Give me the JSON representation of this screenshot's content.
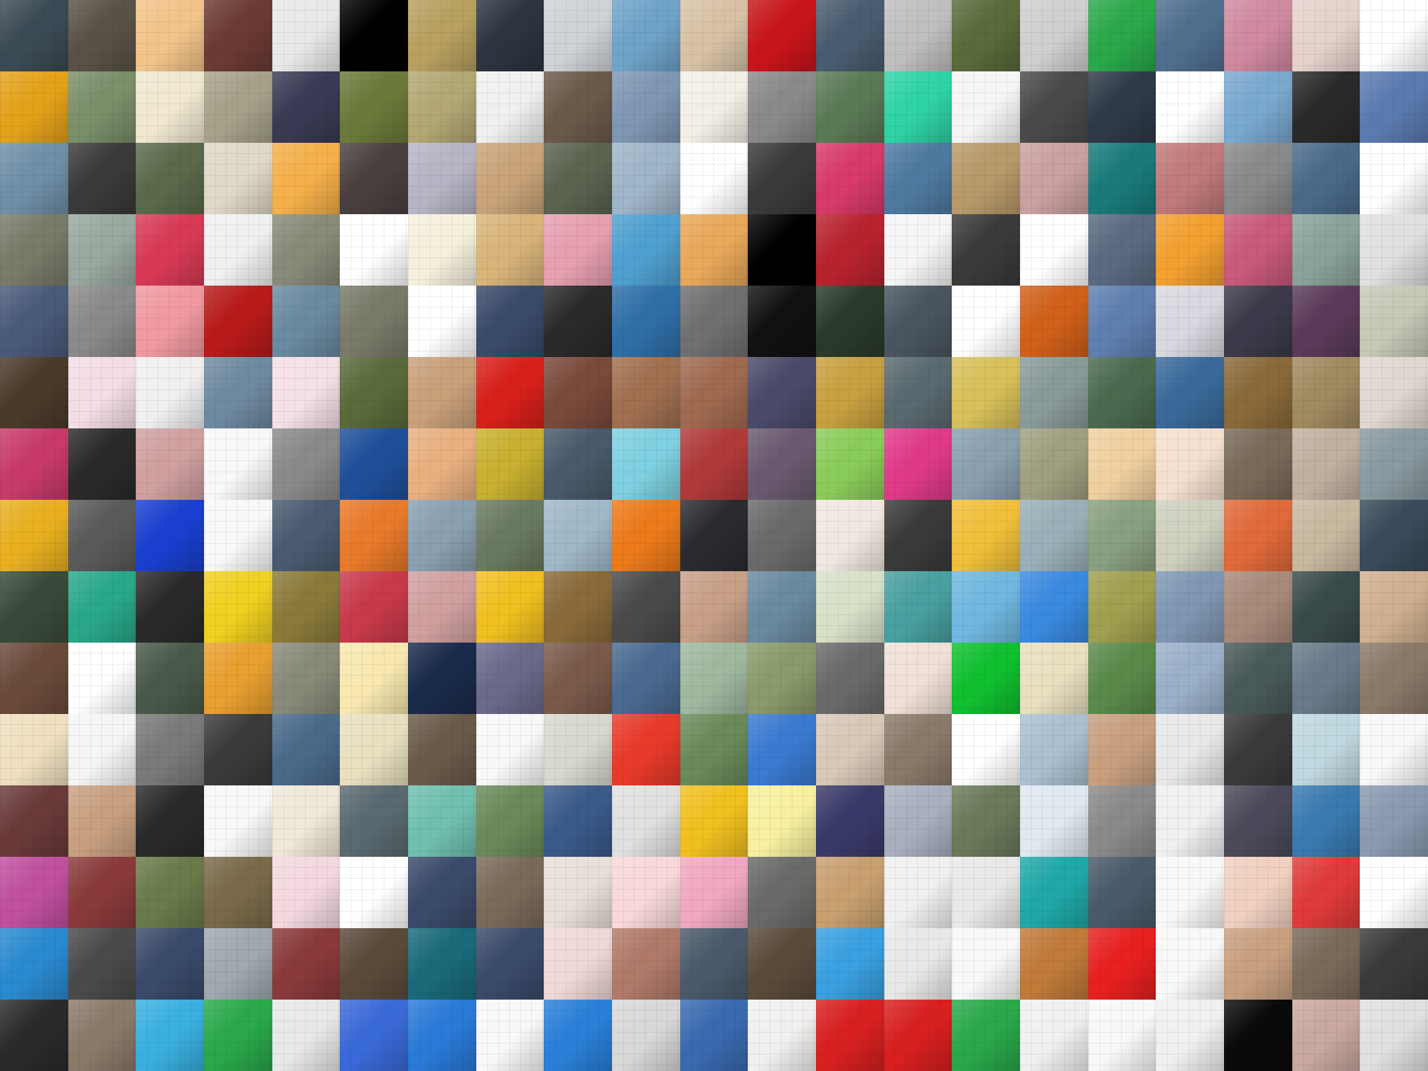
{
  "mosaic": {
    "columns": 21,
    "rows": 15,
    "description_colors": [
      [
        "#3b4a55",
        "#5a5246",
        "#f2c48a",
        "#6b3a33",
        "#e8e8e8",
        "#000000",
        "#b8a060",
        "#2d3440",
        "#cfd3d6",
        "#6fa3c8",
        "#d8c2a6",
        "#c8151a",
        "#4a5c70",
        "#bfbfbf",
        "#5a6a3a",
        "#cfcfcf",
        "#2aa84a",
        "#4f6f8f",
        "#d08aa0",
        "#e6d2cc",
        "#ffffff"
      ],
      [
        "#e3a21a",
        "#7a8f6a",
        "#f0e8d0",
        "#a6a28a",
        "#3a3a55",
        "#6b7a3a",
        "#b3a774",
        "#f0f0f0",
        "#6b5a4a",
        "#7f97b3",
        "#f4efe6",
        "#8a8a8a",
        "#5a7a55",
        "#2fd3a6",
        "#f5f5f5",
        "#4a4a4a",
        "#2e3a48",
        "#ffffff",
        "#7aa8cf",
        "#2a2a2a",
        "#5b7bb0"
      ],
      [
        "#6f8fa8",
        "#3a3a3a",
        "#5a6a4a",
        "#e0d8c8",
        "#f4b04a",
        "#4a4040",
        "#b5b5c5",
        "#c9a47a",
        "#5a6450",
        "#9fb5c8",
        "#ffffff",
        "#3a3a3a",
        "#d83a6a",
        "#4f7aa0",
        "#b89a6a",
        "#caa0a0",
        "#1a7a7a",
        "#c07a7a",
        "#8a8a8a",
        "#4a6a8a",
        "#ffffff"
      ],
      [
        "#7a7a6a",
        "#9aa8a0",
        "#d83a55",
        "#f0f0f0",
        "#8a8a7a",
        "#ffffff",
        "#f5f0dc",
        "#d9b47a",
        "#e6a0b0",
        "#4fa0d0",
        "#e9a85a",
        "#000000",
        "#b8232e",
        "#f5f5f5",
        "#3a3a3a",
        "#ffffff",
        "#5a6a80",
        "#f2a030",
        "#c85a7a",
        "#8aa39a",
        "#e0e0e0"
      ],
      [
        "#4a5a7a",
        "#8a8a8a",
        "#f09aa0",
        "#b81a1a",
        "#6a8aa0",
        "#7a7a6a",
        "#ffffff",
        "#3a4a6a",
        "#2a2a2a",
        "#2f6fa8",
        "#707070",
        "#111111",
        "#2a3a2a",
        "#4a5560",
        "#ffffff",
        "#d0601a",
        "#5f7fb0",
        "#d8d8e0",
        "#3a3a4a",
        "#5a3a5a",
        "#c8c8b8"
      ],
      [
        "#4a3a2a",
        "#f4dde4",
        "#f0f0f0",
        "#6f8aa0",
        "#f5e0e6",
        "#5a6a3a",
        "#c8a07a",
        "#d8201a",
        "#7a4a3a",
        "#a07050",
        "#a06a50",
        "#4a4a6a",
        "#c8a040",
        "#5a6a70",
        "#d8c05a",
        "#8a9a9a",
        "#4a6a50",
        "#3a6a9a",
        "#8a6a3a",
        "#a08a60",
        "#e0d8d0"
      ],
      [
        "#c83a6a",
        "#2a2a2a",
        "#d0a0a0",
        "#f8f8f8",
        "#8a8a8a",
        "#1f4f9a",
        "#e8b080",
        "#c8b030",
        "#4a5a6a",
        "#7fd0e0",
        "#b03a3a",
        "#6a5a70",
        "#8acc5a",
        "#e03a8a",
        "#8aa0b0",
        "#a0a080",
        "#f0d0a0",
        "#f5e0d0",
        "#7a6a5a",
        "#c0b0a0",
        "#8a9aa0"
      ],
      [
        "#e8b020",
        "#5a5a5a",
        "#1a3fd0",
        "#f8f8f8",
        "#4a5a70",
        "#e87a2a",
        "#8aa0b0",
        "#6a7a60",
        "#a0b8c8",
        "#ec7a1a",
        "#2a2a30",
        "#6a6a6a",
        "#f0e8e0",
        "#3a3a3a",
        "#f0c03a",
        "#9ab0b8",
        "#8aa080",
        "#d0d0c0",
        "#e06a3a",
        "#c8b8a0",
        "#3a4a5a"
      ],
      [
        "#3a4a3a",
        "#2aa88a",
        "#2a2a2a",
        "#f0d020",
        "#8a7a3a",
        "#c83a4a",
        "#d0a0a0",
        "#f0c020",
        "#8a6a3a",
        "#4a4a4a",
        "#c8a088",
        "#6a8aa0",
        "#d8e0c8",
        "#4aa0a0",
        "#70b8e0",
        "#3a8ae0",
        "#a0a050",
        "#7f97b3",
        "#a88a7a",
        "#3a4a4a",
        "#d0b090"
      ],
      [
        "#6a4a3a",
        "#ffffff",
        "#4a5a4a",
        "#e8a030",
        "#8a8a7a",
        "#f8e8b0",
        "#1a2a4a",
        "#6a6a8a",
        "#7a5a4a",
        "#4a6a90",
        "#a0b8a0",
        "#8a9a6a",
        "#6a6a6a",
        "#f0e0d8",
        "#10c030",
        "#e8e0c0",
        "#5a8a4a",
        "#9ab0c8",
        "#4a5a5a",
        "#6a7a8a",
        "#8a7a6a"
      ],
      [
        "#f0e0c0",
        "#f5f5f5",
        "#7a7a7a",
        "#3a3a3a",
        "#4a6a8a",
        "#e8e0c0",
        "#6a5a4a",
        "#f8f8f8",
        "#d8d8d0",
        "#e83a2a",
        "#6a8a5a",
        "#3a7ad0",
        "#d8c8b8",
        "#8a7a6a",
        "#ffffff",
        "#aac0d0",
        "#c8a080",
        "#e8e8e8",
        "#3a3a3a",
        "#c0d8e0",
        "#f8f8f8"
      ],
      [
        "#6a3a3a",
        "#c8a080",
        "#2a2a2a",
        "#f8f8f8",
        "#f0e8d8",
        "#5a6a70",
        "#70c0b0",
        "#6a8a5a",
        "#3a5a8a",
        "#e0e0e0",
        "#f0c020",
        "#f8f0a0",
        "#3a3a6a",
        "#a8b0c0",
        "#6a7a5a",
        "#e0e8f0",
        "#8a8a8a",
        "#f0f0f0",
        "#4a4a5a",
        "#3a7ab0",
        "#8a9ab0"
      ],
      [
        "#c050a0",
        "#8a3a3a",
        "#6a7a4a",
        "#7a6a4a",
        "#f4d8e0",
        "#ffffff",
        "#3a4a6a",
        "#7a6a5a",
        "#e8e0d8",
        "#f8d8d8",
        "#f0a8c0",
        "#6a6a6a",
        "#c8a070",
        "#f0f0f0",
        "#e8e8e8",
        "#20a8a8",
        "#4a5a6a",
        "#f8f8f8",
        "#f0d0c0",
        "#e03a3a",
        "#ffffff"
      ],
      [
        "#2a8ad0",
        "#4a4a4a",
        "#3a4a6a",
        "#a0a8b0",
        "#8a3a3a",
        "#5a4a3a",
        "#1a6a7a",
        "#3a4a6a",
        "#f0d8d8",
        "#b07a6a",
        "#4a5a6a",
        "#5a4a3a",
        "#3aa0e0",
        "#e8e8e8",
        "#f8f8f8",
        "#c07a3a",
        "#e82020",
        "#f8f8f8",
        "#c8a080",
        "#7a6a5a",
        "#3a3a3a"
      ],
      [
        "#2a2a2a",
        "#8a7a6a",
        "#3ab0e0",
        "#2aa84a",
        "#e8e8e8",
        "#3a6ad8",
        "#2a7ad8",
        "#f8f8f8",
        "#2a80d8",
        "#d8d8d8",
        "#3a6ab0",
        "#f0f0f0",
        "#d82020",
        "#d82020",
        "#2aa84a",
        "#f0f0f0",
        "#f8f8f8",
        "#f0f0f0",
        "#0a0a0a",
        "#c8a8a0",
        "#e0e0e0"
      ]
    ]
  }
}
